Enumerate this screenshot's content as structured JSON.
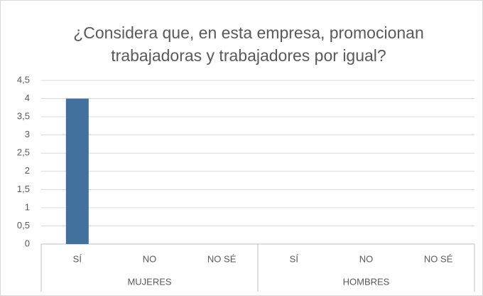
{
  "chart_data": {
    "type": "bar",
    "title": "¿Considera que, en esta empresa, promocionan trabajadoras y trabajadores por igual?",
    "categories": [
      "SÍ",
      "NO",
      "NO SÉ",
      "SÍ",
      "NO",
      "NO SÉ"
    ],
    "groups": [
      "MUJERES",
      "HOMBRES"
    ],
    "values": [
      4,
      0,
      0,
      0,
      0,
      0
    ],
    "color": "#41719c",
    "ylim": [
      0,
      4.5
    ],
    "yticks": [
      0,
      {
        "value": 0.5,
        "label": "0,5"
      },
      1,
      {
        "value": 1.5,
        "label": "1,5"
      },
      2,
      {
        "value": 2.5,
        "label": "2,5"
      },
      3,
      {
        "value": 3.5,
        "label": "3,5"
      },
      4,
      {
        "value": 4.5,
        "label": "4,5"
      }
    ],
    "grid": true
  }
}
